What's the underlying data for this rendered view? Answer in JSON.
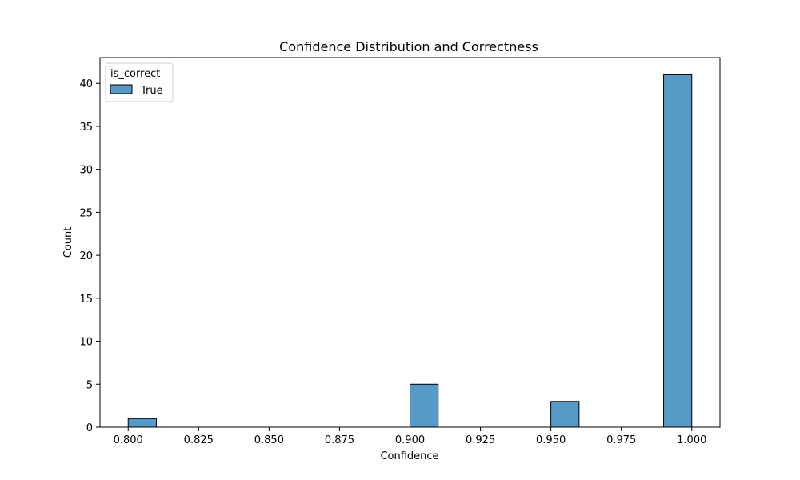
{
  "chart_data": {
    "type": "bar",
    "title": "Confidence Distribution and Correctness",
    "xlabel": "Confidence",
    "ylabel": "Count",
    "xlim": [
      0.79,
      1.01
    ],
    "ylim": [
      0,
      43
    ],
    "x_ticks": [
      0.8,
      0.825,
      0.85,
      0.875,
      0.9,
      0.925,
      0.95,
      0.975,
      1.0
    ],
    "x_tick_labels": [
      "0.800",
      "0.825",
      "0.850",
      "0.875",
      "0.900",
      "0.925",
      "0.950",
      "0.975",
      "1.000"
    ],
    "y_ticks": [
      0,
      5,
      10,
      15,
      20,
      25,
      30,
      35,
      40
    ],
    "y_tick_labels": [
      "0",
      "5",
      "10",
      "15",
      "20",
      "25",
      "30",
      "35",
      "40"
    ],
    "bin_width": 0.01,
    "bins": [
      {
        "x_start": 0.8,
        "x_end": 0.81,
        "count": 1
      },
      {
        "x_start": 0.9,
        "x_end": 0.91,
        "count": 5
      },
      {
        "x_start": 0.95,
        "x_end": 0.96,
        "count": 3
      },
      {
        "x_start": 0.99,
        "x_end": 1.0,
        "count": 41
      }
    ],
    "legend": {
      "title": "is_correct",
      "placement": "top-left",
      "entries": [
        {
          "label": "True",
          "color": "#5799c7"
        }
      ]
    },
    "colors": {
      "bar_fill": "#5799c7",
      "bar_edge": "#000000"
    },
    "grid": false
  }
}
